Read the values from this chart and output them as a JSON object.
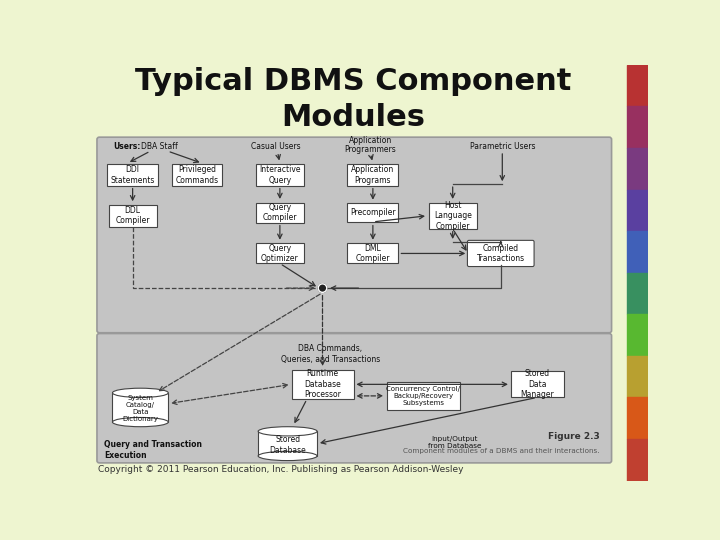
{
  "title": "Typical DBMS Component\nModules",
  "title_fontsize": 22,
  "title_color": "#111111",
  "bg_color": "#eef5d0",
  "panel_bg": "#c8c8c8",
  "box_face": "#ffffff",
  "box_edge": "#444444",
  "copyright": "Copyright © 2011 Pearson Education, Inc. Publishing as Pearson Addison-Wesley",
  "figure_label": "Figure 2.3",
  "figure_caption": "Component modules of a DBMS and their interactions.",
  "stripe_colors": [
    "#b83232",
    "#983060",
    "#7a3a80",
    "#5a40a0",
    "#4060b8",
    "#389060",
    "#58b830",
    "#b8a030",
    "#d85818",
    "#c04030"
  ]
}
